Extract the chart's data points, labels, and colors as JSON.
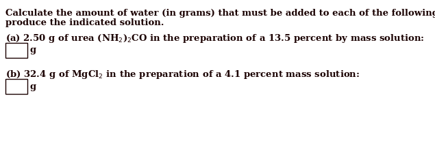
{
  "title_line1": "Calculate the amount of water (in grams) that must be added to each of the following substances to",
  "title_line2": "produce the indicated solution.",
  "part_a_text": "(a) 2.50 g of urea (NH$_2$)$_2$CO in the preparation of a 13.5 percent by mass solution:",
  "part_b_text": "(b) 32.4 g of MgCl$_2$ in the preparation of a 4.1 percent mass solution:",
  "unit_label": "g",
  "text_color": "#1a0000",
  "background_color": "#ffffff",
  "font_size": 9.5
}
